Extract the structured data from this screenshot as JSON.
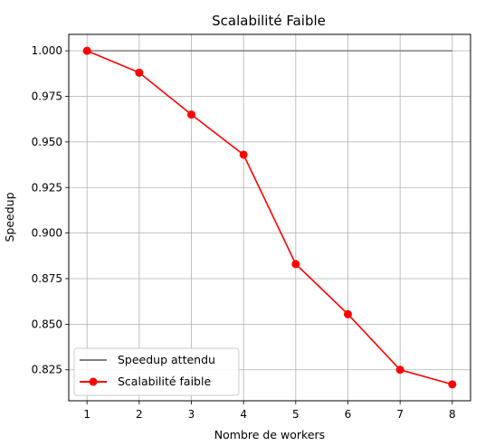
{
  "chart_data": {
    "type": "line",
    "title": "Scalabilité Faible",
    "xlabel": "Nombre de workers",
    "ylabel": "Speedup",
    "xlim": [
      0.65,
      8.35
    ],
    "ylim": [
      0.808,
      1.009
    ],
    "xticks": [
      1,
      2,
      3,
      4,
      5,
      6,
      7,
      8
    ],
    "xtick_labels": [
      "1",
      "2",
      "3",
      "4",
      "5",
      "6",
      "7",
      "8"
    ],
    "yticks": [
      0.825,
      0.85,
      0.875,
      0.9,
      0.925,
      0.95,
      0.975,
      1.0
    ],
    "ytick_labels": [
      "0.825",
      "0.850",
      "0.875",
      "0.900",
      "0.925",
      "0.950",
      "0.975",
      "1.000"
    ],
    "grid": true,
    "legend_position": "lower-left",
    "series": [
      {
        "name": "Speedup attendu",
        "color": "#808080",
        "marker": "none",
        "x": [
          1,
          2,
          3,
          4,
          5,
          6,
          7,
          8
        ],
        "y": [
          1.0,
          1.0,
          1.0,
          1.0,
          1.0,
          1.0,
          1.0,
          1.0
        ]
      },
      {
        "name": "Scalabilité faible",
        "color": "#ff0000",
        "marker": "circle",
        "x": [
          1,
          2,
          3,
          4,
          5,
          6,
          7,
          8
        ],
        "y": [
          1.0,
          0.988,
          0.965,
          0.943,
          0.883,
          0.8555,
          0.825,
          0.817
        ]
      }
    ]
  }
}
